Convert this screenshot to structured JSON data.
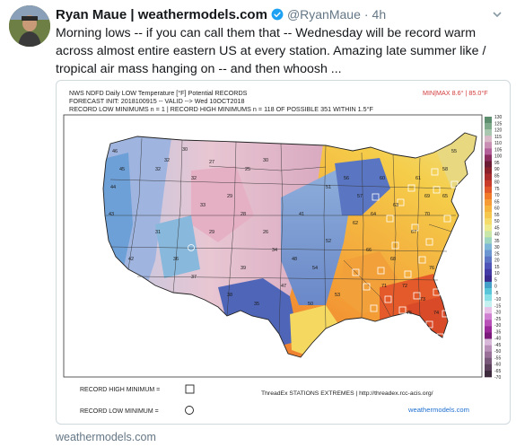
{
  "author": {
    "name": "Ryan Maue | weathermodels.com",
    "handle": "@RyanMaue",
    "separator": "·",
    "time": "4h"
  },
  "tweet": {
    "line1": "Morning lows -- if you can call them that -- Wednesday will be record warm",
    "line2": "across almost entire eastern US at every station.  Amazing late summer like /",
    "line3": "tropical air mass hanging on -- and then whoosh ..."
  },
  "map": {
    "title_line1": "NWS NDFD Daily LOW Temperature [°F] Potential RECORDS",
    "title_line2": "FORECAST INIT: 2018100915 -- VALID --> Wed 10OCT2018",
    "title_line3": "RECORD LOW MINIMUMS n = 1 | RECORD HIGH MINIMUMS n = 118 OF POSSIBLE 351 WITHIN 1.5°F",
    "minmax": "MIN|MAX 8.6° | 85.0°F",
    "legend_high": "RECORD HIGH MINIMUM =",
    "legend_low": "RECORD LOW MINIMUM =",
    "source": "ThreadEx STATIONS EXTREMES | http://threadex.rcc-acis.org/",
    "watermark": "weathermodels.com",
    "colorbar_ticks": [
      "130",
      "125",
      "120",
      "115",
      "110",
      "105",
      "100",
      "95",
      "90",
      "85",
      "80",
      "75",
      "70",
      "65",
      "60",
      "55",
      "50",
      "45",
      "40",
      "35",
      "30",
      "25",
      "20",
      "15",
      "10",
      "5",
      "0",
      "-5",
      "-10",
      "-15",
      "-20",
      "-25",
      "-30",
      "-35",
      "-40",
      "-45",
      "-50",
      "-55",
      "-60",
      "-65",
      "-70"
    ],
    "colorbar_colors": [
      "#5c8e6e",
      "#7fa98b",
      "#a9c7ae",
      "#d9b8c8",
      "#c98fb2",
      "#b35f9a",
      "#8b2d5e",
      "#6a1b33",
      "#8a1f2a",
      "#a82a2a",
      "#c83a2a",
      "#e0552a",
      "#f07a2a",
      "#f59a35",
      "#f6b43f",
      "#f5c84d",
      "#f5dc6a",
      "#eeeb8f",
      "#c9e6a9",
      "#9ed6c0",
      "#7fb7d8",
      "#6a95d0",
      "#5b74c4",
      "#4f55b8",
      "#433aa6",
      "#3b2a8e",
      "#44a0c8",
      "#58c6d8",
      "#88e0e6",
      "#c4f0f0",
      "#e8c0e8",
      "#d080d0",
      "#b850b8",
      "#9a2a9a",
      "#7a1a7a",
      "#d8b8d8",
      "#b890b8",
      "#987098",
      "#785878",
      "#5a405a",
      "#3d2a3d"
    ],
    "station_labels": [
      {
        "t": "46"
      },
      {
        "t": "45"
      },
      {
        "t": "44"
      },
      {
        "t": "43"
      },
      {
        "t": "32"
      },
      {
        "t": "30"
      },
      {
        "t": "32"
      },
      {
        "t": "27"
      },
      {
        "t": "32"
      },
      {
        "t": "25"
      },
      {
        "t": "29"
      },
      {
        "t": "30"
      },
      {
        "t": "28"
      },
      {
        "t": "33"
      },
      {
        "t": "29"
      },
      {
        "t": "31"
      },
      {
        "t": "26"
      },
      {
        "t": "36"
      },
      {
        "t": "42"
      },
      {
        "t": "37"
      },
      {
        "t": "41"
      },
      {
        "t": "51"
      },
      {
        "t": "54"
      },
      {
        "t": "56"
      },
      {
        "t": "57"
      },
      {
        "t": "62"
      },
      {
        "t": "60"
      },
      {
        "t": "64"
      },
      {
        "t": "63"
      },
      {
        "t": "66"
      },
      {
        "t": "68"
      },
      {
        "t": "67"
      },
      {
        "t": "70"
      },
      {
        "t": "72"
      },
      {
        "t": "73"
      },
      {
        "t": "74"
      },
      {
        "t": "75"
      },
      {
        "t": "76"
      },
      {
        "t": "71"
      },
      {
        "t": "69"
      },
      {
        "t": "58"
      },
      {
        "t": "55"
      },
      {
        "t": "52"
      },
      {
        "t": "48"
      },
      {
        "t": "47"
      },
      {
        "t": "39"
      },
      {
        "t": "38"
      },
      {
        "t": "35"
      },
      {
        "t": "34"
      },
      {
        "t": "50"
      },
      {
        "t": "53"
      },
      {
        "t": "61"
      },
      {
        "t": "65"
      }
    ]
  },
  "footer": {
    "link": "weathermodels.com"
  }
}
